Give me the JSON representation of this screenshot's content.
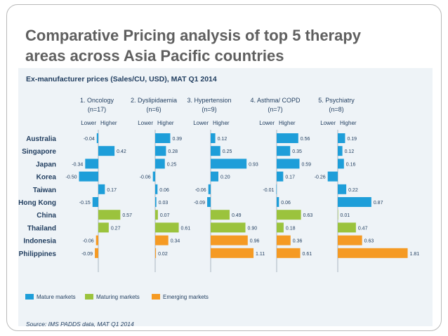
{
  "slide": {
    "title_line1": "Comparative Pricing analysis of top 5 therapy",
    "title_line2": "areas across Asia Pacific countries"
  },
  "chart_data": {
    "type": "bar",
    "orientation": "horizontal",
    "title": "Ex-manufacturer prices (Sales/CU, USD), MAT Q1 2014",
    "source": "Source: IMS PADDS data, MAT Q1 2014",
    "axis_labels": {
      "lower": "Lower",
      "higher": "Higher"
    },
    "countries": [
      "Australia",
      "Singapore",
      "Japan",
      "Korea",
      "Taiwan",
      "Hong Kong",
      "China",
      "Thailand",
      "Indonesia",
      "Philippines"
    ],
    "market_type": [
      "mature",
      "mature",
      "mature",
      "mature",
      "mature",
      "mature",
      "maturing",
      "maturing",
      "emerging",
      "emerging"
    ],
    "legend": [
      {
        "key": "mature",
        "label": "Mature markets",
        "color": "#1e9ed9"
      },
      {
        "key": "maturing",
        "label": "Maturing markets",
        "color": "#9bc33d"
      },
      {
        "key": "emerging",
        "label": "Emerging markets",
        "color": "#f59a23"
      }
    ],
    "panels": [
      {
        "name": "1. Oncology",
        "n": "(n=17)",
        "values": [
          -0.04,
          0.42,
          -0.34,
          -0.5,
          0.17,
          -0.15,
          0.57,
          0.27,
          -0.06,
          -0.09
        ],
        "labels": [
          "-0.04",
          "0.42",
          "-0.34",
          "-0.50",
          "0.17",
          "-0.15",
          "0.57",
          "0.27",
          "-0.06",
          "-0.09"
        ]
      },
      {
        "name": "2. Dyslipidaemia",
        "n": "(n=6)",
        "values": [
          0.39,
          0.28,
          0.25,
          -0.06,
          0.06,
          0.03,
          0.07,
          0.61,
          0.34,
          0.02
        ],
        "labels": [
          "0.39",
          "0.28",
          "0.25",
          "-0.06",
          "0.06",
          "0.03",
          "0.07",
          "0.61",
          "0.34",
          "0.02"
        ]
      },
      {
        "name": "3. Hypertension",
        "n": "(n=9)",
        "values": [
          0.12,
          0.25,
          0.93,
          0.2,
          -0.06,
          -0.09,
          0.49,
          0.9,
          0.96,
          1.11
        ],
        "labels": [
          "0.12",
          "0.25",
          "0.93",
          "0.20",
          "-0.06",
          "-0.09",
          "0.49",
          "0.90",
          "0.96",
          "1.11"
        ]
      },
      {
        "name": "4. Asthma/ COPD",
        "n": "(n=7)",
        "values": [
          0.56,
          0.35,
          0.59,
          0.17,
          -0.01,
          0.06,
          0.63,
          0.18,
          0.36,
          0.61
        ],
        "labels": [
          "0.56",
          "0.35",
          "0.59",
          "0.17",
          "-0.01",
          "0.06",
          "0.63",
          "0.18",
          "0.36",
          "0.61"
        ]
      },
      {
        "name": "5. Psychiatry",
        "n": "(n=8)",
        "values": [
          0.19,
          0.12,
          0.16,
          -0.26,
          0.22,
          0.87,
          0.01,
          0.47,
          0.63,
          1.81
        ],
        "labels": [
          "0.19",
          "0.12",
          "0.16",
          "-0.26",
          "0.22",
          "0.87",
          "0.01",
          "0.47",
          "0.63",
          "1.81"
        ]
      }
    ]
  }
}
